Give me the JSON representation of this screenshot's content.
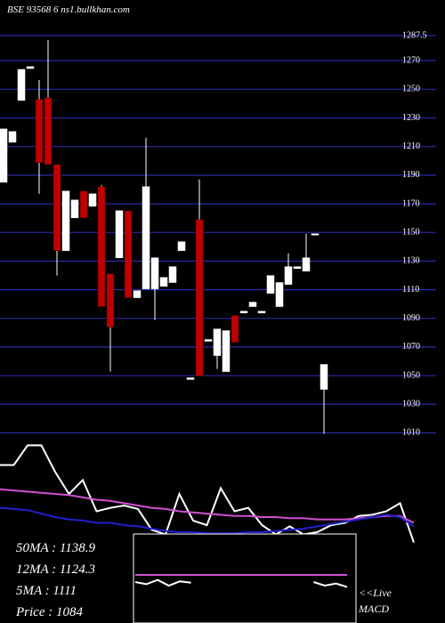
{
  "chart_data": {
    "type": "candlestick",
    "title": "BSE 93568    6 ns1.bullkhan.com",
    "categories": [
      null,
      null,
      null,
      null,
      null,
      null,
      null,
      null,
      null,
      null,
      null,
      null,
      null,
      null,
      null,
      null,
      null,
      null,
      null,
      null,
      null,
      null,
      null,
      null,
      null,
      null,
      null,
      null,
      null,
      null,
      null,
      null,
      null,
      null,
      null,
      null,
      null
    ],
    "open": [
      1185.1,
      1213.0,
      1242.2,
      1264.5,
      1242.8,
      1244.0,
      1197.5,
      1137.3,
      1160.2,
      1178.9,
      1168.3,
      1182.0,
      1121.1,
      1132.3,
      1165.2,
      1104.4,
      1110.6,
      1110.6,
      1112.4,
      1115.0,
      1137.3,
      1047.3,
      1159.0,
      1074.0,
      1064.0,
      1052.8,
      1092.0,
      1093.8,
      1098.2,
      1093.8,
      1107.5,
      1098.2,
      1113.7,
      1124.8,
      1123.0,
      1148.4,
      1040.4
    ],
    "high": [
      1222.3,
      1220.5,
      1263.9,
      1265.8,
      1256.5,
      1284.4,
      1197.5,
      1178.9,
      1172.7,
      1178.9,
      1177.0,
      1183.2,
      1121.1,
      1165.2,
      1165.2,
      1109.3,
      1216.1,
      1132.3,
      1118.6,
      1126.1,
      1143.5,
      1048.5,
      1187.0,
      1075.2,
      1082.6,
      1081.4,
      1092.0,
      1095.0,
      1101.3,
      1095.0,
      1119.9,
      1115.0,
      1135.4,
      1126.1,
      1149.1,
      1149.1,
      1057.8
    ],
    "low": [
      1185.1,
      1213.0,
      1242.2,
      1264.5,
      1177.0,
      1197.5,
      1119.9,
      1137.3,
      1160.2,
      1160.2,
      1168.3,
      1098.2,
      1052.8,
      1132.3,
      1104.4,
      1104.4,
      1110.6,
      1088.8,
      1112.4,
      1115.0,
      1137.3,
      1047.3,
      1049.7,
      1074.0,
      1054.7,
      1052.8,
      1073.3,
      1093.8,
      1098.2,
      1093.8,
      1107.5,
      1098.2,
      1113.7,
      1124.8,
      1123.0,
      1148.4,
      1009.4
    ],
    "close": [
      1222.3,
      1220.5,
      1263.9,
      1265.8,
      1198.7,
      1197.5,
      1137.3,
      1178.9,
      1172.7,
      1160.2,
      1177.0,
      1098.2,
      1083.9,
      1165.2,
      1104.4,
      1109.3,
      1182.0,
      1132.3,
      1118.6,
      1126.1,
      1143.5,
      1048.5,
      1049.7,
      1075.2,
      1082.6,
      1081.4,
      1073.3,
      1095.0,
      1101.3,
      1095.0,
      1119.9,
      1115.0,
      1126.1,
      1126.1,
      1132.3,
      1149.1,
      1057.8
    ],
    "up_color": "#ffffff",
    "down_color": "#c00000",
    "grid_color": "#2a2aa8",
    "ylim": [
      1009,
      1287.5
    ],
    "yticks": [
      1010,
      1030,
      1050,
      1070,
      1090,
      1110,
      1130,
      1150,
      1170,
      1190,
      1210,
      1230,
      1250,
      1270,
      1287.5
    ],
    "indicator_ylim": [
      0,
      100
    ],
    "indicators": [
      {
        "color": "#ffffff",
        "values": [
          75,
          75,
          92,
          92,
          69,
          50,
          62,
          35,
          38,
          40,
          37,
          19,
          15,
          50,
          27,
          23,
          55,
          35,
          38,
          23,
          15,
          22,
          15,
          17,
          23,
          25,
          31,
          32,
          35,
          42,
          8
        ]
      },
      {
        "color": "#d050d0",
        "values": [
          54,
          53,
          52,
          51,
          50,
          49,
          47,
          45,
          44,
          42,
          40,
          38,
          37,
          35,
          34,
          33,
          32,
          31,
          31,
          30,
          30,
          29,
          29,
          28,
          28,
          28,
          29,
          30,
          31,
          31,
          25
        ]
      },
      {
        "color": "#2020d0",
        "values": [
          38,
          37,
          36,
          33,
          30,
          28,
          27,
          25,
          25,
          23,
          22,
          20,
          18,
          17,
          17,
          16,
          16,
          16,
          17,
          17,
          18,
          19,
          20,
          22,
          24,
          26,
          28,
          30,
          32,
          30,
          22
        ]
      }
    ],
    "macd_ylim": [
      0,
      100
    ],
    "macd": [
      {
        "color": "#d050d0",
        "values": [
          55,
          55,
          55,
          55,
          55,
          55,
          55,
          55,
          55,
          55,
          55,
          55,
          55,
          55,
          55,
          55,
          55,
          55,
          55,
          55
        ]
      },
      {
        "color": "#ffffff",
        "values": [
          45,
          42,
          48,
          40,
          46,
          44,
          null,
          null,
          null,
          null,
          null,
          null,
          null,
          null,
          null,
          null,
          45,
          40,
          43,
          38
        ]
      }
    ],
    "stats": [
      "50MA : 1138.9",
      "12MA : 1124.3",
      "5MA : 1111",
      "Price   : 1084"
    ],
    "live_label": "<<Live",
    "macd_label": "MACD"
  }
}
